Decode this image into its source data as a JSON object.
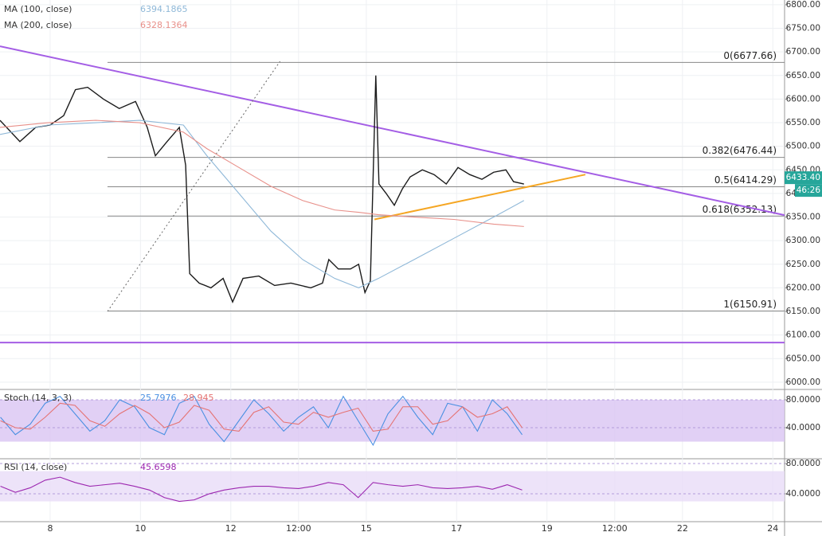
{
  "chart_data": [
    {
      "type": "line",
      "xlim": [
        6.89,
        24.26
      ],
      "ylim": [
        5988,
        6810
      ],
      "xticks": [
        8,
        10,
        12,
        {
          "value": 13.5,
          "label": "12:00"
        },
        15,
        17,
        19,
        {
          "value": 20.5,
          "label": "12:00"
        },
        22,
        24
      ],
      "yticks": [
        {
          "value": 6000,
          "label": "6000.00"
        },
        {
          "value": 6050,
          "label": "6050.00"
        },
        {
          "value": 6100,
          "label": "6100.00"
        },
        {
          "value": 6150,
          "label": "6150.00"
        },
        {
          "value": 6200,
          "label": "6200.00"
        },
        {
          "value": 6250,
          "label": "6250.00"
        },
        {
          "value": 6300,
          "label": "6300.00"
        },
        {
          "value": 6350,
          "label": "6350.00"
        },
        {
          "value": 6400,
          "label": "6400.00"
        },
        {
          "value": 6450,
          "label": "6450.00"
        },
        {
          "value": 6500,
          "label": "6500.00"
        },
        {
          "value": 6550,
          "label": "6550.00"
        },
        {
          "value": 6600,
          "label": "6600.00"
        },
        {
          "value": 6650,
          "label": "6650.00"
        },
        {
          "value": 6700,
          "label": "6700.00"
        },
        {
          "value": 6750,
          "label": "6750.00"
        },
        {
          "value": 6800,
          "label": "6800.00"
        }
      ],
      "grid": true,
      "series": [
        {
          "color": "#1b1b1b",
          "x": [
            6.89,
            7.33,
            7.68,
            8,
            8.3,
            8.56,
            8.83,
            9.18,
            9.53,
            9.89,
            10.15,
            10.33,
            10.59,
            10.86,
            11.0,
            11.09,
            11.3,
            11.56,
            11.83,
            12.04,
            12.27,
            12.62,
            12.97,
            13.33,
            13.77,
            14.03,
            14.17,
            14.38,
            14.65,
            14.83,
            14.97,
            15.09,
            15.21,
            15.28,
            15.44,
            15.62,
            15.8,
            15.97,
            16.24,
            16.5,
            16.77,
            17.03,
            17.29,
            17.56,
            17.82,
            18.09,
            18.26,
            18.49
          ],
          "values": [
            6555,
            6510,
            6540,
            6545,
            6565,
            6620,
            6625,
            6600,
            6580,
            6595,
            6540,
            6480,
            6510,
            6540,
            6460,
            6230,
            6210,
            6200,
            6220,
            6170,
            6220,
            6225,
            6205,
            6210,
            6200,
            6210,
            6260,
            6240,
            6240,
            6250,
            6190,
            6215,
            6650,
            6420,
            6400,
            6375,
            6410,
            6435,
            6450,
            6440,
            6420,
            6455,
            6440,
            6430,
            6445,
            6450,
            6425,
            6420
          ]
        },
        {
          "name": "MA (100, close)",
          "color": "#8fb8d8",
          "last": 6394.1865,
          "x": [
            6.89,
            7.95,
            9.01,
            9.98,
            10.95,
            11.47,
            12.18,
            12.89,
            13.59,
            14.3,
            14.83,
            15.27,
            16.06,
            16.94,
            17.82,
            18.49
          ],
          "values": [
            6525,
            6545,
            6550,
            6555,
            6545,
            6480,
            6400,
            6320,
            6260,
            6220,
            6200,
            6220,
            6260,
            6305,
            6350,
            6385
          ]
        },
        {
          "name": "MA (200, close)",
          "color": "#e8908a",
          "last": 6328.1364,
          "x": [
            6.89,
            7.95,
            9.01,
            9.98,
            10.95,
            11.47,
            12.18,
            12.89,
            13.59,
            14.3,
            14.83,
            15.27,
            16.06,
            16.94,
            17.82,
            18.49
          ],
          "values": [
            6540,
            6550,
            6555,
            6550,
            6530,
            6495,
            6455,
            6415,
            6385,
            6365,
            6360,
            6355,
            6350,
            6345,
            6335,
            6330
          ]
        }
      ],
      "levels": [
        {
          "label": "0(6677.66)",
          "value": 6677.66
        },
        {
          "label": "0.382(6476.44)",
          "value": 6476.44
        },
        {
          "label": "0.5(6414.29)",
          "value": 6414.29
        },
        {
          "label": "0.618(6352.13)",
          "value": 6352.13
        },
        {
          "label": "1(6150.91)",
          "value": 6150.91
        }
      ],
      "levels_start": 9.27,
      "drawings": [
        {
          "color": "#a45ee5",
          "x": [
            6.89,
            24.26
          ],
          "y": [
            6712,
            6354
          ]
        },
        {
          "color": "#f5a623",
          "x": [
            15.18,
            19.85
          ],
          "y": [
            6345,
            6440
          ]
        },
        {
          "color": "#a45ee5",
          "x": [
            6.89,
            24.26
          ],
          "y": [
            6084,
            6084
          ]
        },
        {
          "color": "#666666",
          "dash": true,
          "x": [
            9.27,
            13.09
          ],
          "y": [
            6150,
            6680
          ]
        }
      ],
      "price_tag": {
        "value": 6433.4,
        "label": "6433.40"
      },
      "countdown": "46:26"
    },
    {
      "type": "line",
      "title": "Stoch (14, 3, 3)",
      "ylim": [
        -3.4,
        93.7
      ],
      "band": [
        20,
        80
      ],
      "yticks": [
        {
          "value": 80,
          "label": "80.0000"
        },
        {
          "value": 40,
          "label": "40.0000"
        }
      ],
      "x": [
        6.9,
        7.23,
        7.56,
        7.89,
        8.22,
        8.55,
        8.88,
        9.21,
        9.54,
        9.87,
        10.2,
        10.53,
        10.86,
        11.19,
        11.52,
        11.85,
        12.18,
        12.51,
        12.84,
        13.17,
        13.5,
        13.83,
        14.16,
        14.49,
        14.82,
        15.15,
        15.48,
        15.81,
        16.14,
        16.47,
        16.8,
        17.13,
        17.46,
        17.79,
        18.12,
        18.45
      ],
      "series": [
        {
          "color": "#4a90e2",
          "last": 25.7976,
          "values": [
            55,
            30,
            45,
            75,
            85,
            60,
            35,
            50,
            80,
            70,
            40,
            30,
            75,
            85,
            45,
            20,
            50,
            80,
            60,
            35,
            55,
            70,
            40,
            85,
            50,
            15,
            60,
            85,
            55,
            30,
            75,
            70,
            35,
            80,
            60,
            30
          ]
        },
        {
          "color": "#e57373",
          "last": 28.945,
          "values": [
            50,
            40,
            38,
            55,
            75,
            72,
            50,
            42,
            60,
            72,
            60,
            40,
            48,
            72,
            65,
            38,
            35,
            62,
            70,
            48,
            45,
            62,
            55,
            62,
            68,
            35,
            38,
            70,
            70,
            45,
            50,
            70,
            55,
            60,
            70,
            40
          ]
        }
      ]
    },
    {
      "type": "line",
      "title": "RSI (14, close)",
      "ylim": [
        3.2,
        85.3
      ],
      "band": [
        30,
        70
      ],
      "yticks": [
        {
          "value": 80,
          "label": "80.0000"
        },
        {
          "value": 40,
          "label": "40.0000"
        }
      ],
      "x": [
        6.9,
        7.23,
        7.56,
        7.89,
        8.22,
        8.55,
        8.88,
        9.21,
        9.54,
        9.87,
        10.2,
        10.53,
        10.86,
        11.19,
        11.52,
        11.85,
        12.18,
        12.51,
        12.84,
        13.17,
        13.5,
        13.83,
        14.16,
        14.49,
        14.82,
        15.15,
        15.48,
        15.81,
        16.14,
        16.47,
        16.8,
        17.13,
        17.46,
        17.79,
        18.12,
        18.45
      ],
      "series": [
        {
          "color": "#9c27b0",
          "last": 45.6598,
          "values": [
            50,
            42,
            48,
            58,
            62,
            55,
            50,
            52,
            54,
            50,
            45,
            35,
            30,
            32,
            40,
            45,
            48,
            50,
            50,
            48,
            47,
            50,
            55,
            52,
            35,
            55,
            52,
            50,
            52,
            48,
            47,
            48,
            50,
            46,
            52,
            45
          ]
        }
      ]
    }
  ]
}
